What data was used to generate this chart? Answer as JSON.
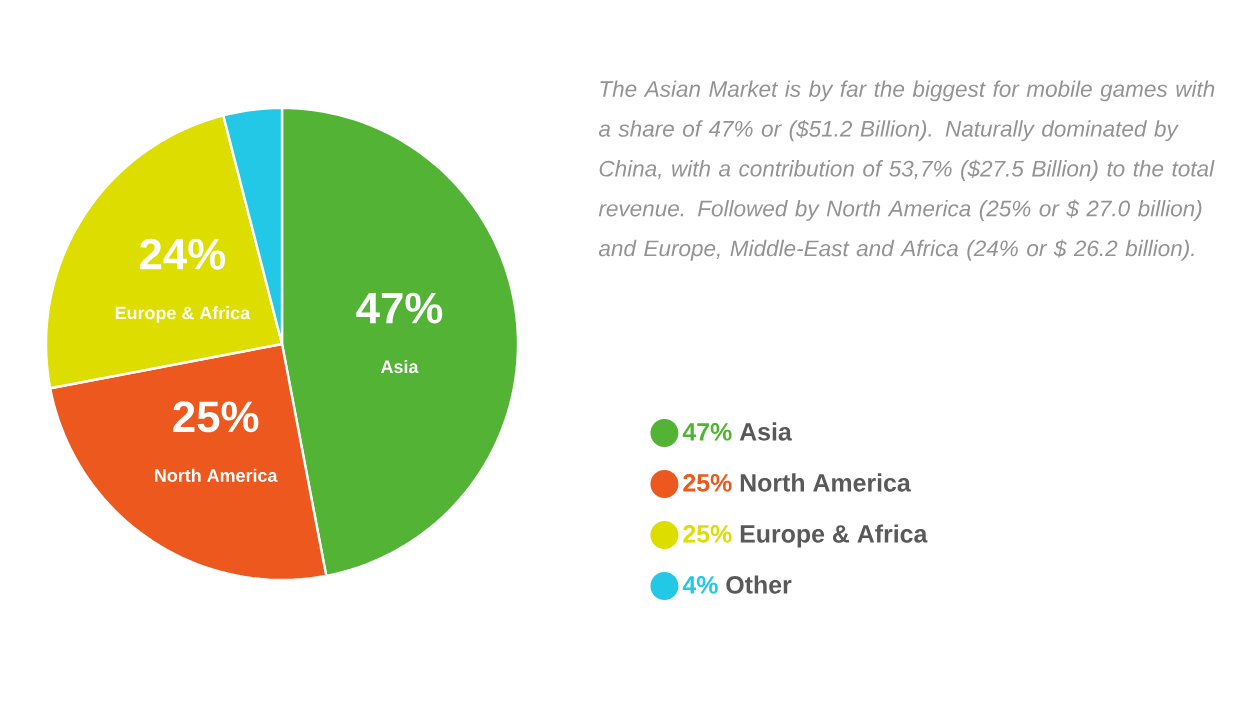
{
  "chart_data": {
    "type": "pie",
    "categories": [
      "Asia",
      "North America",
      "Europe & Africa",
      "Other"
    ],
    "values": [
      47,
      25,
      24,
      4
    ],
    "value_labels": [
      "47%",
      "25%",
      "24%",
      null
    ],
    "colors": [
      "#52b335",
      "#ec581d",
      "#dddd00",
      "#22c8e5"
    ],
    "legend": "right",
    "annotations": [
      "The Asian Market is by far the biggest for mobile games with a share of 47% or ($51.2 Billion). Naturally dominated by China, with a contribution of 53,7% ($27.5 Billion) to the total revenue. Followed by North America (25% or $ 27.0 billion) and Europe, Middle-East and Africa (24% or $ 26.2 billion).",
      "47%",
      "25%",
      "25%",
      "4%"
    ]
  }
}
